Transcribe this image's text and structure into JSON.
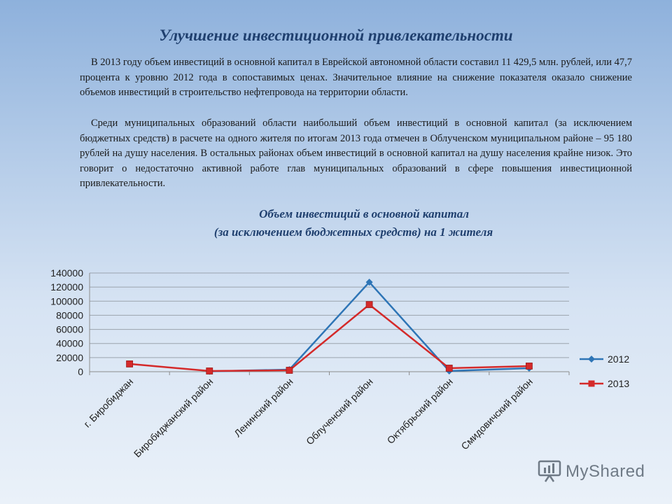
{
  "title": "Улучшение инвестиционной привлекательности",
  "paragraphs": [
    "В 2013 году объем инвестиций в основной капитал в Еврейской автономной области составил 11 429,5 млн. рублей, или 47,7 процента к уровню 2012 года в сопоставимых ценах. Значительное влияние на снижение показателя оказало снижение объемов инвестиций в строительство нефтепровода на территории области.",
    "Среди муниципальных образований области наибольший объем инвестиций в основной капитал (за исключением бюджетных средств) в расчете на одного жителя по итогам 2013 года отмечен в Облученском муниципальном районе – 95 180 рублей на душу населения. В остальных районах объем инвестиций в основной капитал на душу населения крайне низок. Это говорит о недостаточно активной работе глав муниципальных образований в сфере повышения инвестиционной привлекательности."
  ],
  "chart_title_line1": "Объем инвестиций в основной капитал",
  "chart_title_line2": "(за исключением бюджетных средств)  на 1 жителя",
  "watermark": "MyShared",
  "chart_data": {
    "type": "line",
    "categories": [
      "г. Биробиджан",
      "Биробиджанский район",
      "Ленинский район",
      "Облученский район",
      "Октябрьский район",
      "Смидовичский район"
    ],
    "series": [
      {
        "name": "2012",
        "values": [
          null,
          500,
          3000,
          127000,
          1000,
          5000
        ],
        "color": "#2e75b6",
        "marker": "diamond"
      },
      {
        "name": "2013",
        "values": [
          11000,
          1000,
          2000,
          95180,
          5000,
          8000
        ],
        "color": "#d42a2a",
        "marker": "square"
      }
    ],
    "ylim": [
      0,
      140000
    ],
    "yticks": [
      "0",
      "20000",
      "40000",
      "60000",
      "80000",
      "100000",
      "120000",
      "140000"
    ],
    "grid": true,
    "legend_position": "right"
  }
}
